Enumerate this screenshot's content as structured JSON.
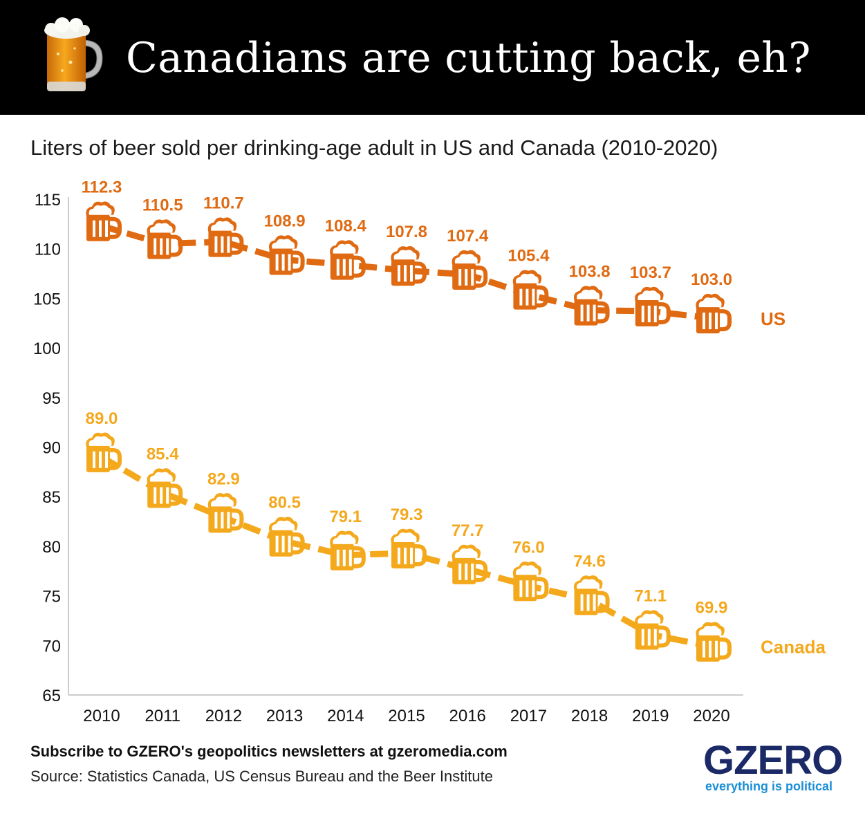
{
  "header": {
    "title": "Canadians are cutting back, eh?",
    "icon": "beer-mug-icon"
  },
  "subtitle": "Liters of beer sold per drinking-age adult in US and Canada (2010-2020)",
  "footer": {
    "subscribe": "Subscribe to GZERO's geopolitics newsletters at gzeromedia.com",
    "source": "Source: Statistics Canada, US Census Bureau and the Beer Institute"
  },
  "logo": {
    "name": "GZERO",
    "tagline": "everything is political",
    "color": "#1b2a66",
    "tagline_color": "#1a8fd6"
  },
  "chart_data": {
    "type": "line",
    "title": "Liters of beer sold per drinking-age adult in US and Canada (2010-2020)",
    "xlabel": "",
    "ylabel": "",
    "x": [
      "2010",
      "2011",
      "2012",
      "2013",
      "2014",
      "2015",
      "2016",
      "2017",
      "2018",
      "2019",
      "2020"
    ],
    "ylim": [
      65,
      115
    ],
    "yticks": [
      65,
      70,
      75,
      80,
      85,
      90,
      95,
      100,
      105,
      110,
      115
    ],
    "grid": false,
    "legend": "labels at line ends (right)",
    "marker": "beer-mug-icon",
    "series": [
      {
        "name": "US",
        "color": "#e06a12",
        "values": [
          112.3,
          110.5,
          110.7,
          108.9,
          108.4,
          107.8,
          107.4,
          105.4,
          103.8,
          103.7,
          103.0
        ],
        "labels": [
          "112.3",
          "110.5",
          "110.7",
          "108.9",
          "108.4",
          "107.8",
          "107.4",
          "105.4",
          "103.8",
          "103.7",
          "103.0"
        ]
      },
      {
        "name": "Canada",
        "color": "#f4a81c",
        "values": [
          89.0,
          85.4,
          82.9,
          80.5,
          79.1,
          79.3,
          77.7,
          76.0,
          74.6,
          71.1,
          69.9
        ],
        "labels": [
          "89.0",
          "85.4",
          "82.9",
          "80.5",
          "79.1",
          "79.3",
          "77.7",
          "76.0",
          "74.6",
          "71.1",
          "69.9"
        ]
      }
    ]
  }
}
